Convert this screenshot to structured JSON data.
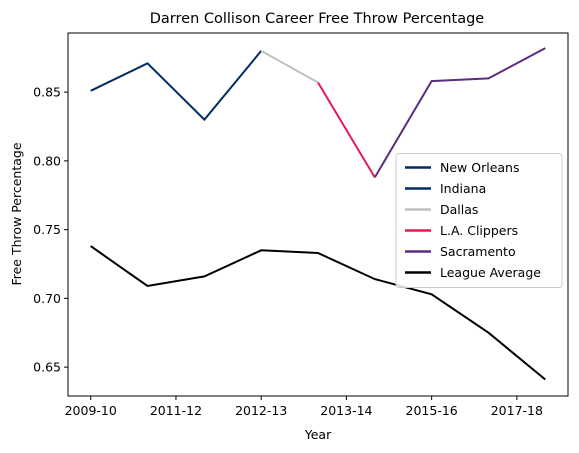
{
  "chart_data": {
    "type": "line",
    "title": "Darren Collison Career Free Throw Percentage",
    "xlabel": "Year",
    "ylabel": "Free Throw Percentage",
    "x_tick_labels": [
      "2009-10",
      "2011-12",
      "2012-13",
      "2013-14",
      "2015-16",
      "2017-18"
    ],
    "x_tick_positions": [
      0,
      1.5,
      3,
      4.5,
      6,
      7.5
    ],
    "xlim": [
      -0.4,
      8.4
    ],
    "ylim": [
      0.629,
      0.893
    ],
    "y_ticks": [
      0.65,
      0.7,
      0.75,
      0.8,
      0.85
    ],
    "y_tick_labels": [
      "0.65",
      "0.70",
      "0.75",
      "0.80",
      "0.85"
    ],
    "legend_position": "center-right",
    "series": [
      {
        "name": "New Orleans",
        "color": "#002B5C",
        "x": [
          0
        ],
        "y": [
          0.851
        ]
      },
      {
        "name": "Indiana",
        "color": "#002D62",
        "x": [
          0,
          1,
          2,
          3
        ],
        "y": [
          0.851,
          0.871,
          0.83,
          0.88
        ]
      },
      {
        "name": "Dallas",
        "color": "#BEC0C2",
        "x": [
          3,
          4
        ],
        "y": [
          0.88,
          0.857
        ]
      },
      {
        "name": "L.A. Clippers",
        "color": "#E31B53",
        "x": [
          4,
          5
        ],
        "y": [
          0.857,
          0.788
        ]
      },
      {
        "name": "Sacramento",
        "color": "#5A2D81",
        "x": [
          5,
          6,
          7,
          8
        ],
        "y": [
          0.788,
          0.858,
          0.86,
          0.882
        ]
      },
      {
        "name": "League Average",
        "color": "#000000",
        "x": [
          0,
          1,
          2,
          3,
          4,
          5,
          6,
          7,
          8
        ],
        "y": [
          0.738,
          0.709,
          0.716,
          0.735,
          0.733,
          0.714,
          0.703,
          0.675,
          0.641
        ]
      }
    ]
  }
}
